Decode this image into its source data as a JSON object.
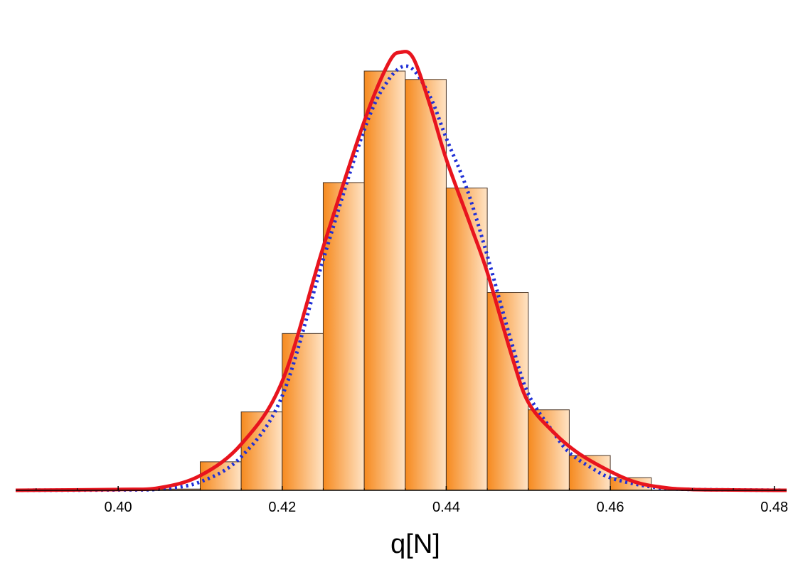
{
  "chart_data": {
    "type": "bar",
    "title": "",
    "xlabel": "q[N]",
    "ylabel": "",
    "xlim": [
      0.3875,
      0.4815
    ],
    "ylim": [
      0,
      100
    ],
    "bin_width": 0.005,
    "bins": [
      {
        "left": 0.405,
        "right": 0.41,
        "value": 0.3
      },
      {
        "left": 0.41,
        "right": 0.415,
        "value": 6.8
      },
      {
        "left": 0.415,
        "right": 0.42,
        "value": 18.7
      },
      {
        "left": 0.42,
        "right": 0.425,
        "value": 37.4
      },
      {
        "left": 0.425,
        "right": 0.43,
        "value": 73.4
      },
      {
        "left": 0.43,
        "right": 0.435,
        "value": 100.0
      },
      {
        "left": 0.435,
        "right": 0.44,
        "value": 98.0
      },
      {
        "left": 0.44,
        "right": 0.445,
        "value": 72.1
      },
      {
        "left": 0.445,
        "right": 0.45,
        "value": 47.2
      },
      {
        "left": 0.45,
        "right": 0.455,
        "value": 19.2
      },
      {
        "left": 0.455,
        "right": 0.46,
        "value": 8.3
      },
      {
        "left": 0.46,
        "right": 0.465,
        "value": 3.0
      }
    ],
    "series": [
      {
        "style": "dotted",
        "color": "#1f2fd6",
        "x": [
          0.3875,
          0.4,
          0.405,
          0.41,
          0.415,
          0.42,
          0.425,
          0.43,
          0.433,
          0.4355,
          0.438,
          0.44,
          0.4425,
          0.445,
          0.448,
          0.45,
          0.453,
          0.455,
          0.458,
          0.46,
          0.463,
          0.466,
          0.47,
          0.4815
        ],
        "y": [
          0,
          0.1,
          0.3,
          2.0,
          8.0,
          22.5,
          55.0,
          86.0,
          98.0,
          101.0,
          94.0,
          84.0,
          72.0,
          56.0,
          35.0,
          23.0,
          14.0,
          9.0,
          5.0,
          3.0,
          1.5,
          0.6,
          0.2,
          0
        ]
      },
      {
        "style": "solid",
        "color": "#e8141e",
        "x": [
          0.3875,
          0.4,
          0.405,
          0.41,
          0.415,
          0.42,
          0.425,
          0.43,
          0.433,
          0.4345,
          0.436,
          0.438,
          0.44,
          0.443,
          0.445,
          0.448,
          0.45,
          0.453,
          0.456,
          0.46,
          0.463,
          0.466,
          0.47,
          0.4815
        ],
        "y": [
          0,
          0.2,
          0.6,
          3.5,
          11.0,
          26.0,
          58.0,
          88.0,
          102.0,
          104.5,
          103.0,
          92.0,
          79.0,
          63.0,
          52.0,
          32.0,
          21.0,
          14.0,
          9.0,
          4.5,
          2.0,
          0.8,
          0.2,
          0
        ]
      }
    ],
    "x_ticks": [
      {
        "value": 0.4,
        "label": "0.40"
      },
      {
        "value": 0.42,
        "label": "0.42"
      },
      {
        "value": 0.44,
        "label": "0.44"
      },
      {
        "value": 0.46,
        "label": "0.46"
      },
      {
        "value": 0.48,
        "label": "0.48"
      }
    ],
    "grid": false,
    "legend": "none",
    "colors": {
      "bar_dark": "#f68a1f",
      "bar_light": "#ffe3c4",
      "bar_edge": "#4a3424",
      "axis": "#000000"
    }
  }
}
